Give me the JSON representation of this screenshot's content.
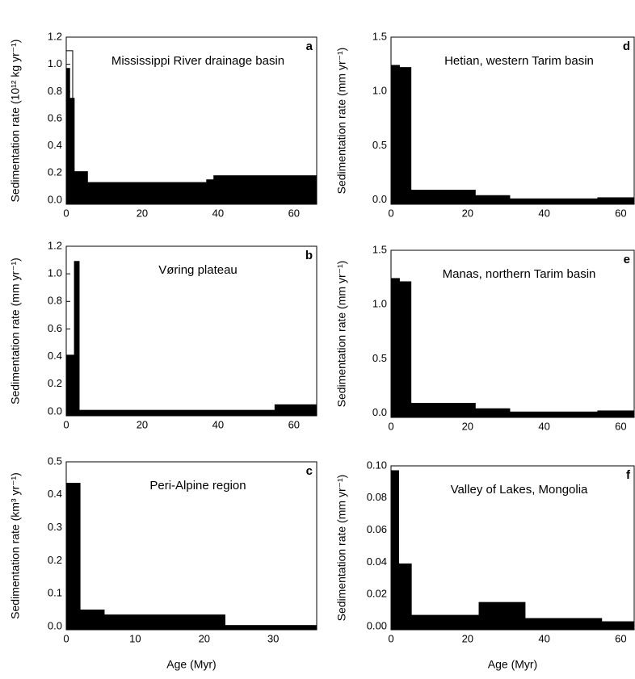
{
  "chart_data": [
    {
      "type": "histogram",
      "title": "Mississippi River drainage basin",
      "panel": "a",
      "y_label": "Sedimentation rate (10¹² kg yr⁻¹)",
      "series": [
        {
          "color": "#ffffff",
          "bins": [
            0,
            1.7
          ],
          "values": [
            1.1
          ]
        },
        {
          "color": "#000000",
          "bins": [
            0,
            0.9,
            2.1,
            5.6,
            37,
            38.9,
            66
          ],
          "values": [
            0.97,
            0.75,
            0.21,
            0.13,
            0.15,
            0.18
          ]
        }
      ],
      "xlim": [
        0,
        66
      ],
      "xticks": [
        0,
        20,
        40,
        60
      ],
      "ylim": [
        -0.03,
        1.2
      ],
      "yticks": [
        {
          "value": 0,
          "label": "0.0"
        },
        0.2,
        0.4,
        0.6,
        0.8,
        {
          "value": 1,
          "label": "1.0"
        },
        1.2
      ]
    },
    {
      "type": "histogram",
      "title": "Vøring plateau",
      "panel": "b",
      "y_label": "Sedimentation rate (mm yr⁻¹)",
      "color": "#000000",
      "bins": [
        0,
        2.15,
        3.4,
        55,
        66
      ],
      "values": [
        0.41,
        1.09,
        0.01,
        0.05
      ],
      "xlim": [
        0,
        66
      ],
      "xticks": [
        0,
        20,
        40,
        60
      ],
      "ylim": [
        -0.03,
        1.2
      ],
      "yticks": [
        {
          "value": 0,
          "label": "0.0"
        },
        0.2,
        0.4,
        0.6,
        0.8,
        {
          "value": 1,
          "label": "1.0"
        },
        1.2
      ]
    },
    {
      "type": "histogram",
      "title": "Peri-Alpine region",
      "panel": "c",
      "y_label": "Sedimentation rate (km³ yr⁻¹)",
      "x_label": "Age (Myr)",
      "color": "#000000",
      "bins": [
        0,
        2,
        5.5,
        23,
        36.3
      ],
      "values": [
        0.435,
        0.05,
        0.035,
        0.003
      ],
      "xlim": [
        0,
        36.3
      ],
      "xticks": [
        0,
        10,
        20,
        30
      ],
      "ylim": [
        -0.01,
        0.5
      ],
      "yticks": [
        {
          "value": 0,
          "label": "0.0"
        },
        0.1,
        0.2,
        0.3,
        0.4,
        0.5
      ]
    },
    {
      "type": "histogram",
      "title": "Hetian, western Tarim basin",
      "panel": "d",
      "y_label": "Sedimentation rate (mm yr⁻¹)",
      "color": "#000000",
      "bins": [
        0,
        2.2,
        5.2,
        22,
        31,
        54,
        63.5
      ],
      "values": [
        1.24,
        1.22,
        0.09,
        0.04,
        0.01,
        0.02
      ],
      "xlim": [
        0,
        63.5
      ],
      "xticks": [
        0,
        20,
        40,
        60
      ],
      "ylim": [
        -0.04,
        1.5
      ],
      "yticks": [
        {
          "value": 0,
          "label": "0.0"
        },
        0.5,
        {
          "value": 1,
          "label": "1.0"
        },
        1.5
      ]
    },
    {
      "type": "histogram",
      "title": "Manas, northern Tarim basin",
      "panel": "e",
      "y_label": "Sedimentation rate (mm yr⁻¹)",
      "color": "#000000",
      "bins": [
        0,
        2.2,
        5.2,
        22,
        31,
        54,
        63.5
      ],
      "values": [
        1.24,
        1.21,
        0.09,
        0.04,
        0.01,
        0.02
      ],
      "xlim": [
        0,
        63.5
      ],
      "xticks": [
        0,
        20,
        40,
        60
      ],
      "ylim": [
        -0.04,
        1.5
      ],
      "yticks": [
        {
          "value": 0,
          "label": "0.0"
        },
        0.5,
        {
          "value": 1,
          "label": "1.0"
        },
        1.5
      ]
    },
    {
      "type": "histogram",
      "title": "Valley of Lakes, Mongolia",
      "panel": "f",
      "y_label": "Sedimentation rate (mm yr⁻¹)",
      "x_label": "Age (Myr)",
      "color": "#000000",
      "bins": [
        0,
        2,
        5.3,
        23,
        35,
        55,
        63.5
      ],
      "values": [
        0.097,
        0.039,
        0.007,
        0.015,
        0.005,
        0.003
      ],
      "xlim": [
        0,
        63.5
      ],
      "xticks": [
        0,
        20,
        40,
        60
      ],
      "ylim": [
        -0.002,
        0.1
      ],
      "yticks": [
        {
          "value": 0,
          "label": "0.00"
        },
        0.02,
        0.04,
        0.06,
        0.08,
        {
          "value": 0.1,
          "label": "0.10"
        }
      ]
    }
  ]
}
